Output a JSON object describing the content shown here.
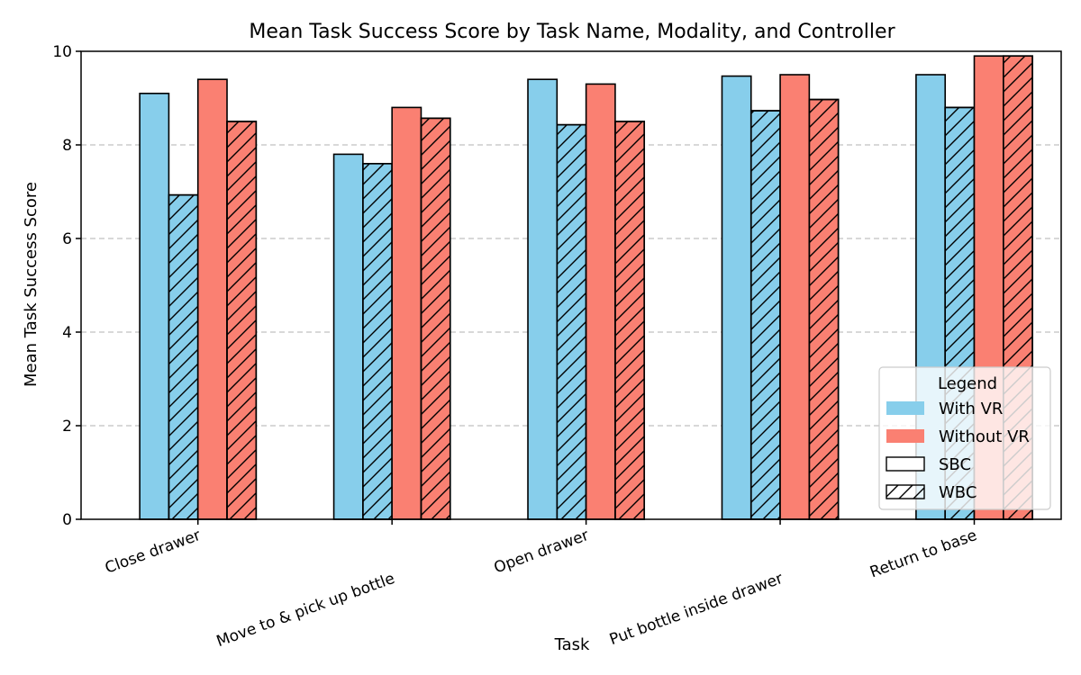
{
  "chart_data": {
    "type": "bar",
    "title": "Mean Task Success Score by Task Name, Modality, and Controller",
    "xlabel": "Task",
    "ylabel": "Mean Task Success Score",
    "ylim": [
      0,
      10
    ],
    "yticks": [
      0,
      2,
      4,
      6,
      8,
      10
    ],
    "grid": "y-dashed",
    "categories": [
      "Close drawer",
      "Move to & pick up bottle",
      "Open drawer",
      "Put bottle inside drawer",
      "Return to base"
    ],
    "series": [
      {
        "key": "vr_sbc",
        "modality": "With VR",
        "controller": "SBC",
        "color": "#87ceeb",
        "hatch": false,
        "values": [
          9.1,
          7.8,
          9.4,
          9.47,
          9.5
        ]
      },
      {
        "key": "vr_wbc",
        "modality": "With VR",
        "controller": "WBC",
        "color": "#87ceeb",
        "hatch": true,
        "values": [
          6.93,
          7.6,
          8.43,
          8.73,
          8.8
        ]
      },
      {
        "key": "novr_sbc",
        "modality": "Without VR",
        "controller": "SBC",
        "color": "#fa8072",
        "hatch": false,
        "values": [
          9.4,
          8.8,
          9.3,
          9.5,
          9.9
        ]
      },
      {
        "key": "novr_wbc",
        "modality": "Without VR",
        "controller": "WBC",
        "color": "#fa8072",
        "hatch": true,
        "values": [
          8.5,
          8.57,
          8.5,
          8.97,
          9.9
        ]
      }
    ],
    "legend": {
      "title": "Legend",
      "placement": "lower-right",
      "entries": [
        {
          "label": "With VR",
          "color": "#87ceeb",
          "hatch": false,
          "kind": "fill"
        },
        {
          "label": "Without VR",
          "color": "#fa8072",
          "hatch": false,
          "kind": "fill"
        },
        {
          "label": "SBC",
          "color": "#ffffff",
          "hatch": false,
          "kind": "outline"
        },
        {
          "label": "WBC",
          "color": "#ffffff",
          "hatch": true,
          "kind": "outline"
        }
      ]
    }
  }
}
